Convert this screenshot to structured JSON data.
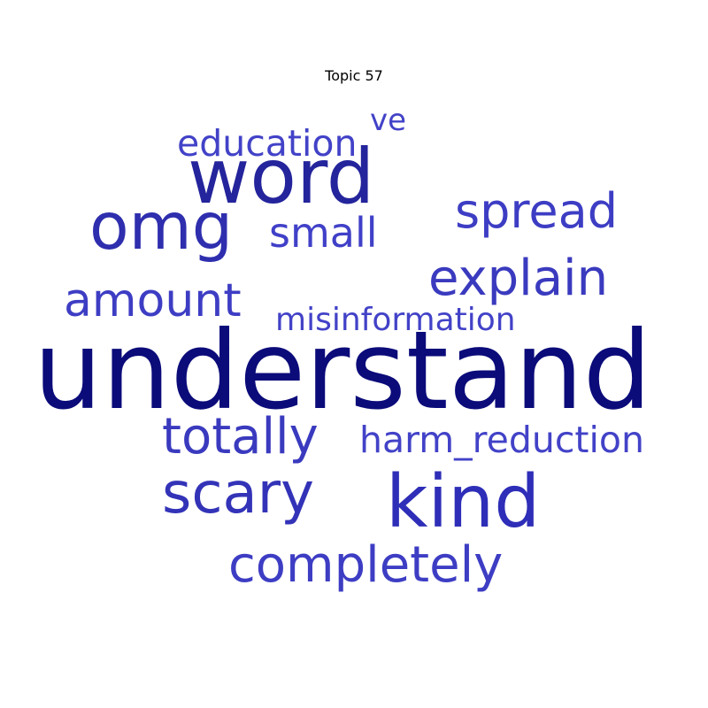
{
  "title": "Topic 57",
  "words": {
    "understand": {
      "text": "understand",
      "color": "#0b0b7a"
    },
    "word": {
      "text": "word",
      "color": "#24249c"
    },
    "omg": {
      "text": "omg",
      "color": "#2e2eae"
    },
    "kind": {
      "text": "kind",
      "color": "#2e2eb8"
    },
    "scary": {
      "text": "scary",
      "color": "#3333b8"
    },
    "spread": {
      "text": "spread",
      "color": "#3d3dc4"
    },
    "explain": {
      "text": "explain",
      "color": "#3a3abf"
    },
    "totally": {
      "text": "totally",
      "color": "#3a3abf"
    },
    "completely": {
      "text": "completely",
      "color": "#3d3dc4"
    },
    "amount": {
      "text": "amount",
      "color": "#3d3dc4"
    },
    "small": {
      "text": "small",
      "color": "#4040c8"
    },
    "education": {
      "text": "education",
      "color": "#4242c8"
    },
    "harm_reduction": {
      "text": "harm_reduction",
      "color": "#4242c8"
    },
    "misinformation": {
      "text": "misinformation",
      "color": "#4242c8"
    },
    "ve": {
      "text": "ve",
      "color": "#4242c8"
    }
  }
}
